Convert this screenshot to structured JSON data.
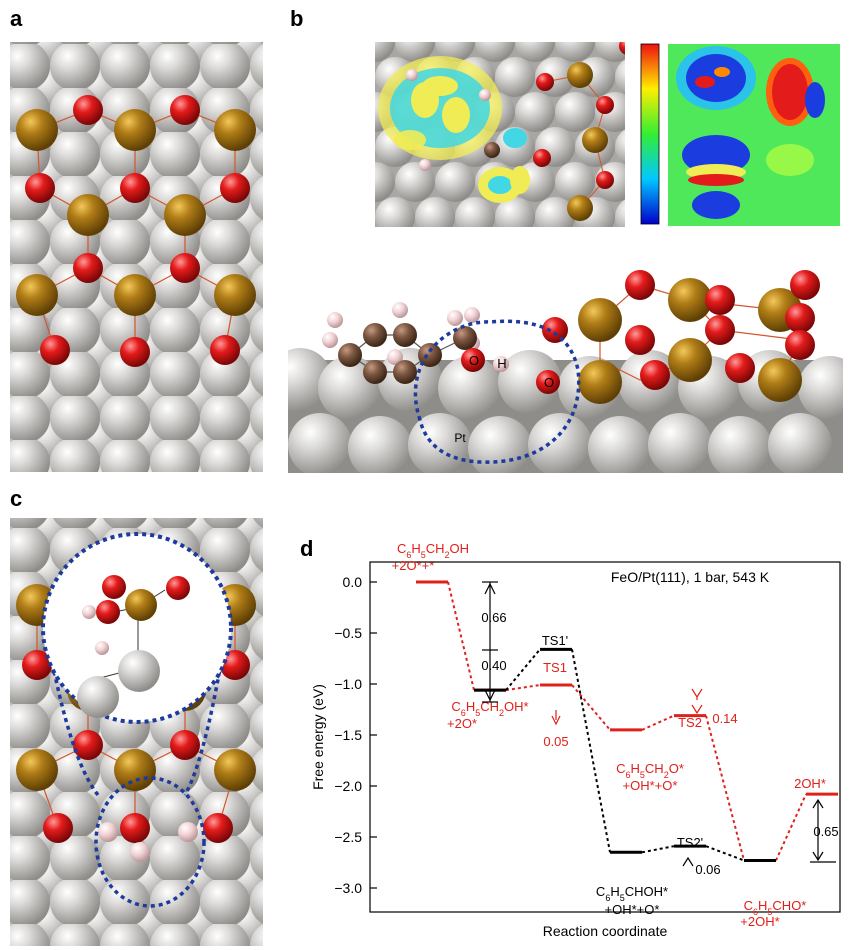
{
  "panel_labels": {
    "a": "a",
    "b": "b",
    "c": "c",
    "d": "d"
  },
  "atom_labels": {
    "pt": "Pt",
    "o1": "O",
    "h": "H",
    "o2": "O"
  },
  "colors": {
    "pt": "#c8c6c4",
    "fe": "#b07d17",
    "o": "#e41b1b",
    "c": "#7b5641",
    "h": "#f2d2d4",
    "ring": "#1d3a9c",
    "red": "#e0201a",
    "black": "#000000"
  },
  "chart_data": {
    "type": "line",
    "title": "FeO/Pt(111), 1 bar, 543 K",
    "xlabel": "Reaction coordinate",
    "ylabel": "Free energy (eV)",
    "ylim": [
      -3.25,
      0.25
    ],
    "yticks": [
      0.0,
      -0.5,
      -1.0,
      -1.5,
      -2.0,
      -2.5,
      -3.0
    ],
    "ytick_labels": [
      "0.0",
      "−0.5",
      "−1.0",
      "−1.5",
      "−2.0",
      "−2.5",
      "−3.0"
    ],
    "grid": false,
    "series": [
      {
        "color": "#e0201a",
        "levels": [
          {
            "pos": 0,
            "y": 0.0
          },
          {
            "pos": 1,
            "y": -1.06
          },
          {
            "pos": 2,
            "y": -1.01
          },
          {
            "pos": 3,
            "y": -1.45
          },
          {
            "pos": 4,
            "y": -1.31
          },
          {
            "pos": 5,
            "y": -2.73
          },
          {
            "pos": 6,
            "y": -2.08
          }
        ]
      },
      {
        "color": "#000000",
        "levels": [
          {
            "pos": 1,
            "y": -1.06
          },
          {
            "pos": 2,
            "y": -0.66
          },
          {
            "pos": 3,
            "y": -2.65
          },
          {
            "pos": 4,
            "y": -2.59
          },
          {
            "pos": 5,
            "y": -2.73
          }
        ]
      }
    ],
    "state_labels": {
      "s0_main": "C",
      "s0_sub1": "6",
      "s0_mid": "H",
      "s0_sub2": "5",
      "s0_mid2": "CH",
      "s0_sub3": "2",
      "s0_end": "OH",
      "s0_line2": "+2O*+*",
      "s1_main": "C",
      "s1_sub1": "6",
      "s1_mid": "H",
      "s1_sub2": "5",
      "s1_mid2": "CH",
      "s1_sub3": "2",
      "s1_end": "OH*",
      "s1_line2": "+2O*",
      "ts1": "TS1",
      "ts1p": "TS1'",
      "s3_main": "C",
      "s3_sub1": "6",
      "s3_mid": "H",
      "s3_sub2": "5",
      "s3_mid2": "CH",
      "s3_sub3": "2",
      "s3_end": "O*",
      "s3_line2": "+OH*+O*",
      "ts2": "TS2",
      "ts2p": "TS2'",
      "s3b_main": "C",
      "s3b_sub1": "6",
      "s3b_mid": "H",
      "s3b_sub2": "5",
      "s3b_end": "CHOH*",
      "s3b_line2": "+OH*+O*",
      "s5_main": "C",
      "s5_sub1": "6",
      "s5_mid": "H",
      "s5_sub2": "5",
      "s5_end": "CHO*",
      "s5_line2": "+2OH*",
      "s6": "2OH*"
    },
    "annotations": {
      "a066": "0.66",
      "a040": "0.40",
      "a005": "0.05",
      "a014": "0.14",
      "a006": "0.06",
      "a065": "0.65"
    }
  }
}
